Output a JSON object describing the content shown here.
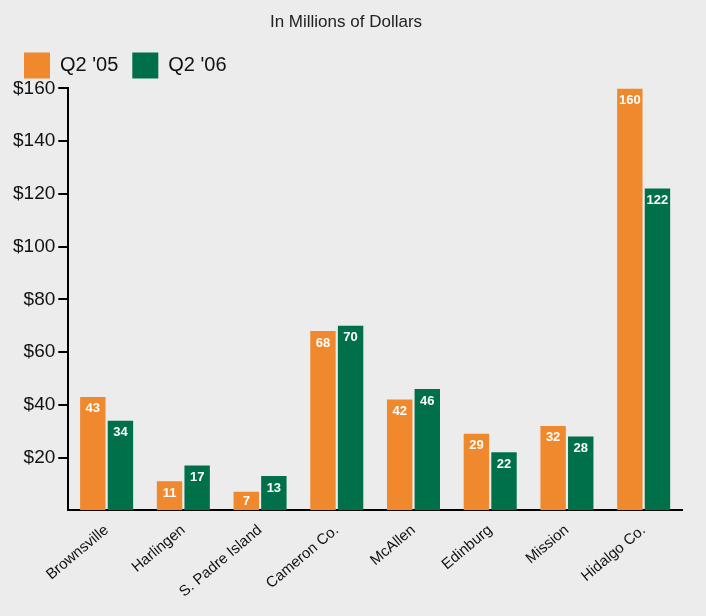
{
  "chart_data": {
    "type": "bar",
    "title": "In Millions of Dollars",
    "categories": [
      "Brownsville",
      "Harlingen",
      "S. Padre Island",
      "Cameron Co.",
      "McAllen",
      "Edinburg",
      "Mission",
      "Hidalgo Co."
    ],
    "series": [
      {
        "name": "Q2 '05",
        "color": "#f0892d",
        "values": [
          43,
          11,
          7,
          68,
          42,
          29,
          32,
          160
        ]
      },
      {
        "name": "Q2 '06",
        "color": "#00704a",
        "values": [
          34,
          17,
          13,
          70,
          46,
          22,
          28,
          122
        ]
      }
    ],
    "ylim": [
      0,
      160
    ],
    "yticks": [
      {
        "value": 20,
        "label": "$20"
      },
      {
        "value": 40,
        "label": "$40"
      },
      {
        "value": 60,
        "label": "$60"
      },
      {
        "value": 80,
        "label": "$80"
      },
      {
        "value": 100,
        "label": "$100"
      },
      {
        "value": 120,
        "label": "$120"
      },
      {
        "value": 140,
        "label": "$140"
      },
      {
        "value": 160,
        "label": "$160"
      }
    ],
    "grid": false,
    "legend": "top",
    "data_labels": true
  }
}
